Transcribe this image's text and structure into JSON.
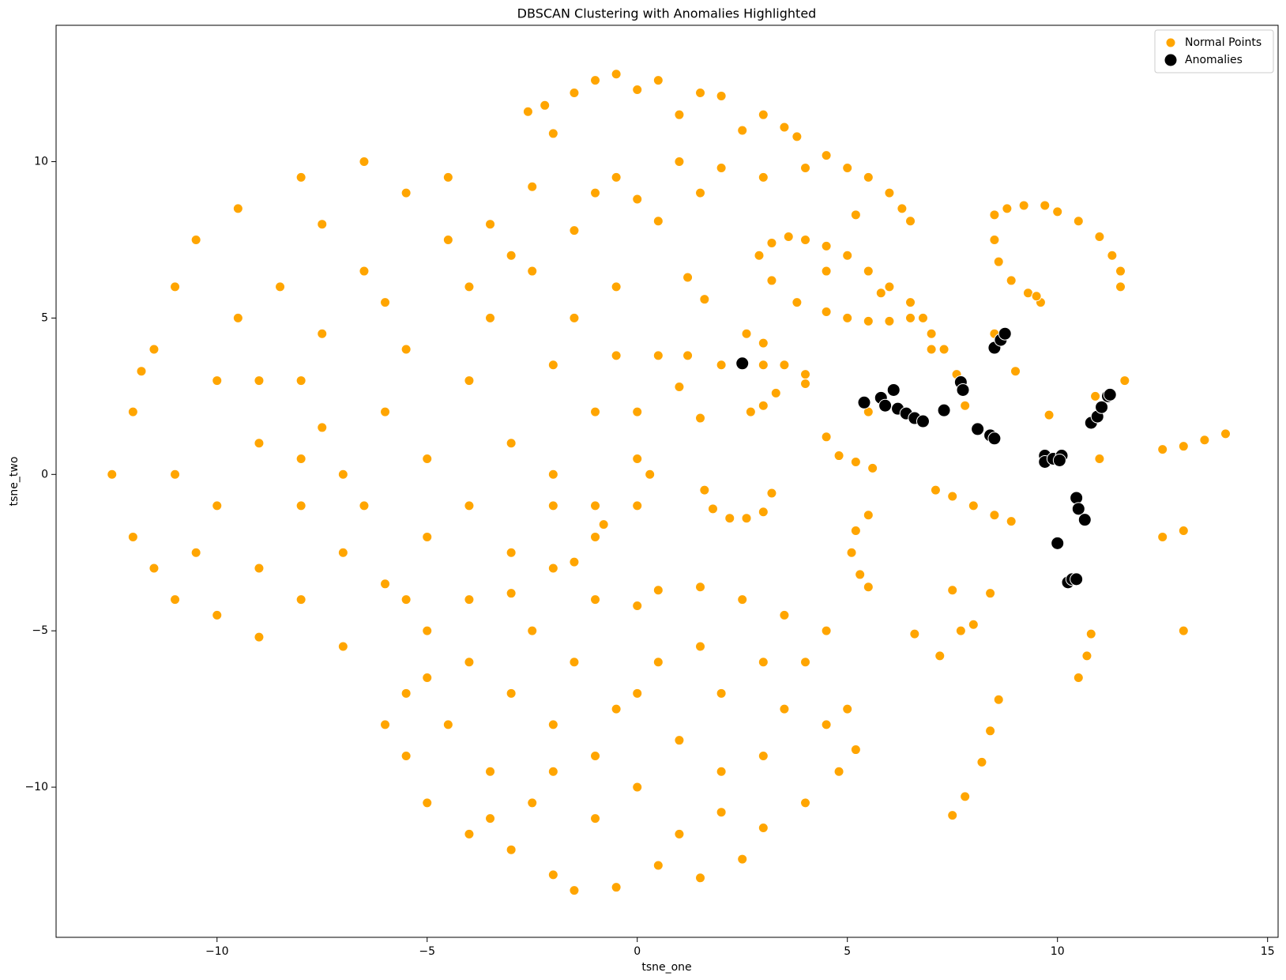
{
  "chart_data": {
    "type": "scatter",
    "title": "DBSCAN Clustering with Anomalies Highlighted",
    "x_label": "tsne_one",
    "y_label": "tsne_two",
    "xlim": [
      -13.83,
      15.25
    ],
    "ylim": [
      -14.8,
      14.36
    ],
    "xticks": [
      {
        "value": -10,
        "label": "−10"
      },
      {
        "value": -5,
        "label": "−5"
      },
      0,
      5,
      10,
      15
    ],
    "yticks": [
      {
        "value": -10,
        "label": "−10"
      },
      {
        "value": -5,
        "label": "−5"
      },
      0,
      5,
      10
    ],
    "legend": "upper right",
    "series": [
      {
        "name": "Normal Points",
        "color": "#ffa500",
        "size": 6,
        "x": [
          -12.5,
          -12,
          -12,
          -11.5,
          -11.5,
          -11,
          -11,
          -11,
          -10.5,
          -10,
          -10,
          -10,
          -9.5,
          -9.5,
          -9,
          -9,
          -9,
          -8.5,
          -8,
          -8,
          -8,
          -8,
          -7.5,
          -7.5,
          -7,
          -7,
          -7,
          -6.5,
          -6.5,
          -6,
          -6,
          -5.5,
          -5.5,
          -5,
          -5,
          -5,
          -4.5,
          -4.5,
          -4,
          -4,
          -4,
          -3.5,
          -3.5,
          -3,
          -3,
          -3,
          -2.5,
          -2.5,
          -2,
          -2,
          -2,
          -1.5,
          -1.5,
          -1,
          -1,
          -1,
          -0.5,
          -0.5,
          0,
          0.3,
          0,
          0,
          -0.8,
          -11.8,
          -10.5,
          -9,
          -8,
          -6.5,
          -6,
          -4,
          -3,
          -2,
          -1.5,
          -7.5,
          -5.5,
          -6,
          -5.5,
          -5.5,
          -5,
          -5,
          -4.5,
          -4,
          -4,
          -3.5,
          -3,
          -3,
          -2.5,
          -2.5,
          -2,
          -2,
          -1.5,
          -1.5,
          -1,
          -1,
          -1,
          -0.5,
          -0.5,
          0,
          0,
          0.5,
          0.5,
          0.5,
          1,
          1,
          1.5,
          1.5,
          1.5,
          2,
          2,
          2.5,
          2.5,
          3,
          3,
          3,
          3.5,
          3.5,
          4,
          4,
          4.5,
          4.5,
          4.8,
          5,
          5.2,
          -3.5,
          0,
          2,
          -2,
          -2.6,
          -2.2,
          -2,
          -1.5,
          -1,
          -0.5,
          -0.5,
          0,
          0,
          0.5,
          0.5,
          1,
          1,
          1.5,
          2,
          2,
          2.5,
          3,
          3,
          3.5,
          3.8,
          4,
          4.5,
          5,
          5.5,
          6,
          6.3,
          6.5,
          1.5,
          -1,
          2.9,
          3.2,
          3.6,
          4,
          4.5,
          5,
          5.5,
          6,
          6.5,
          6.8,
          3.2,
          3.8,
          4.5,
          5,
          5.5,
          6,
          6.5,
          7,
          7.3,
          4.5,
          5.8,
          8.5,
          8.8,
          9.2,
          9.7,
          10,
          10.5,
          11,
          11.3,
          11.5,
          11.5,
          8.5,
          8.6,
          8.9,
          9.3,
          9.6,
          1.6,
          1.8,
          2.2,
          2.6,
          3,
          3.2,
          4.5,
          4.8,
          5.2,
          5.6,
          5.5,
          5.2,
          5.1,
          5.3,
          5.5,
          7.1,
          7.5,
          8,
          8.5,
          8.9,
          7.5,
          7.8,
          8.2,
          8.4,
          8.6,
          10.5,
          10.7,
          10.8,
          12.5,
          13,
          12.5,
          13,
          13.5,
          14,
          2.6,
          3,
          2,
          3,
          3.5,
          4,
          2.7,
          3,
          3.3,
          1,
          1.5,
          0.5,
          1.2,
          1.2,
          1.6,
          7.6,
          7,
          7.8,
          7.2,
          6.6,
          7.7,
          8,
          7.5,
          8.4,
          13,
          11,
          11.6,
          10.9,
          9.8,
          9,
          9.5,
          5.5,
          5.2,
          4,
          8.5
        ],
        "y": [
          0,
          2,
          -2,
          4,
          -3,
          6,
          0,
          -4,
          7.5,
          3,
          -1,
          -4.5,
          8.5,
          5,
          1,
          -3,
          -5.2,
          6,
          9.5,
          3,
          -1,
          -4,
          8,
          4.5,
          0,
          -2.5,
          -5.5,
          10,
          6.5,
          2,
          -3.5,
          9,
          4,
          0.5,
          -2,
          -5,
          7.5,
          9.5,
          3,
          -1,
          -4,
          8,
          5,
          1,
          -2.5,
          -3.8,
          6.5,
          9.2,
          3.5,
          -1,
          -3,
          7.8,
          5,
          2,
          -2,
          -1,
          6,
          3.8,
          0.5,
          0,
          -1,
          2,
          -1.6,
          3.3,
          -2.5,
          3,
          0.5,
          -1,
          5.5,
          6,
          7,
          0,
          -2.8,
          1.5,
          -4,
          -8,
          -7,
          -9,
          -6.5,
          -10.5,
          -8,
          -6,
          -11.5,
          -9.5,
          -7,
          -12,
          -5,
          -10.5,
          -8,
          -12.8,
          -6,
          -13.3,
          -4,
          -9,
          -11,
          -7.5,
          -13.2,
          -4.2,
          -10,
          -3.7,
          -6,
          -12.5,
          -8.5,
          -11.5,
          -3.6,
          -5.5,
          -12.9,
          -7,
          -10.8,
          -4,
          -12.3,
          -6,
          -9,
          -11.3,
          -4.5,
          -7.5,
          -10.5,
          -6,
          -8,
          -5,
          -9.5,
          -7.5,
          -8.8,
          -11,
          -7,
          -9.5,
          -9.5,
          11.6,
          11.8,
          10.9,
          12.2,
          12.6,
          12.8,
          9.5,
          12.3,
          8.8,
          12.6,
          8.1,
          11.5,
          10,
          12.2,
          12.1,
          9.8,
          11,
          11.5,
          9.5,
          11.1,
          10.8,
          9.8,
          10.2,
          9.8,
          9.5,
          9,
          8.5,
          8.1,
          9,
          9,
          7,
          7.4,
          7.6,
          7.5,
          7.3,
          7,
          6.5,
          6,
          5.5,
          5,
          6.2,
          5.5,
          5.2,
          5,
          4.9,
          4.9,
          5,
          4.5,
          4,
          6.5,
          5.8,
          8.3,
          8.5,
          8.6,
          8.6,
          8.4,
          8.1,
          7.6,
          7,
          6.5,
          6,
          7.5,
          6.8,
          6.2,
          5.8,
          5.5,
          -0.5,
          -1.1,
          -1.4,
          -1.4,
          -1.2,
          -0.6,
          1.2,
          0.6,
          0.4,
          0.2,
          -1.3,
          -1.8,
          -2.5,
          -3.2,
          -3.6,
          -0.5,
          -0.7,
          -1,
          -1.3,
          -1.5,
          -10.9,
          -10.3,
          -9.2,
          -8.2,
          -7.2,
          -6.5,
          -5.8,
          -5.1,
          -2,
          -1.8,
          0.8,
          0.9,
          1.1,
          1.3,
          4.5,
          4.2,
          3.5,
          3.5,
          3.5,
          3.2,
          2,
          2.2,
          2.6,
          2.8,
          1.8,
          3.8,
          3.8,
          6.3,
          5.6,
          3.2,
          4,
          2.2,
          -5.8,
          -5.1,
          -5,
          -4.8,
          -3.7,
          -3.8,
          -5,
          0.5,
          3,
          2.5,
          1.9,
          3.3,
          5.7,
          2,
          8.3,
          2.9,
          4.5
        ]
      },
      {
        "name": "Anomalies",
        "color": "#000000",
        "size": 8,
        "x": [
          2.5,
          5.4,
          5.8,
          5.9,
          6.1,
          6.2,
          6.4,
          6.6,
          6.8,
          7.3,
          7.7,
          7.75,
          8.1,
          8.4,
          8.5,
          8.5,
          8.65,
          8.75,
          9.7,
          9.7,
          9.9,
          10.1,
          10.05,
          10.45,
          10.5,
          10.65,
          10,
          10.25,
          10.35,
          10.45,
          10.8,
          10.95,
          11.05,
          11.2,
          11.25
        ],
        "y": [
          3.55,
          2.3,
          2.45,
          2.2,
          2.7,
          2.1,
          1.95,
          1.8,
          1.7,
          2.05,
          2.95,
          2.7,
          1.45,
          1.25,
          1.15,
          4.05,
          4.3,
          4.5,
          0.6,
          0.4,
          0.5,
          0.6,
          0.45,
          -0.75,
          -1.1,
          -1.45,
          -2.2,
          -3.45,
          -3.35,
          -3.35,
          1.65,
          1.85,
          2.15,
          2.5,
          2.55
        ]
      }
    ]
  }
}
